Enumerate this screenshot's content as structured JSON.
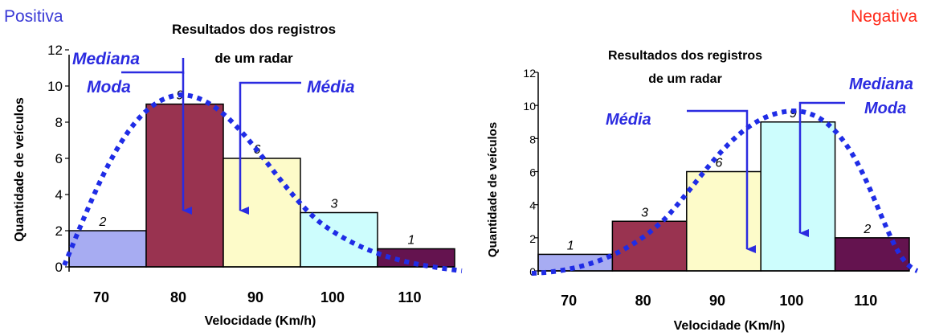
{
  "colors": {
    "positiva_label": "#3a3ad6",
    "negativa_label": "#ff2a1a",
    "annotation": "#2b2be0",
    "curve": "#1f2ce6",
    "bar_colors": [
      "#a7acf2",
      "#993350",
      "#fdfbc9",
      "#cdfdfd",
      "#64134f"
    ]
  },
  "chart_data": [
    {
      "type": "bar",
      "corner_label": "Positiva",
      "title_lines": [
        "Resultados dos registros",
        "de um radar"
      ],
      "xlabel": "Velocidade (Km/h)",
      "ylabel": "Quantidade de veículos",
      "categories": [
        "70",
        "80",
        "90",
        "100",
        "110"
      ],
      "values": [
        2,
        9,
        6,
        3,
        1
      ],
      "data_labels": [
        "2",
        "9",
        "6",
        "3",
        "1"
      ],
      "yticks": [
        "0",
        "2",
        "4",
        "6",
        "8",
        "10",
        "12"
      ],
      "ylim": [
        0,
        12
      ],
      "curve": "dotted skewed bell curve peaking near 80",
      "annotations": {
        "mediana": "Mediana",
        "moda": "Moda",
        "media": "Média"
      }
    },
    {
      "type": "bar",
      "corner_label": "Negativa",
      "title_lines": [
        "Resultados dos registros",
        "de um radar"
      ],
      "xlabel": "Velocidade (Km/h)",
      "ylabel": "Quantidade de veículos",
      "categories": [
        "70",
        "80",
        "90",
        "100",
        "110"
      ],
      "values": [
        1,
        3,
        6,
        9,
        2
      ],
      "data_labels": [
        "1",
        "3",
        "6",
        "9",
        "2"
      ],
      "yticks": [
        "0",
        "2",
        "4",
        "6",
        "8",
        "10",
        "12"
      ],
      "ylim": [
        0,
        12
      ],
      "curve": "dotted skewed bell curve peaking near 100",
      "annotations": {
        "mediana": "Mediana",
        "moda": "Moda",
        "media": "Média"
      }
    }
  ]
}
